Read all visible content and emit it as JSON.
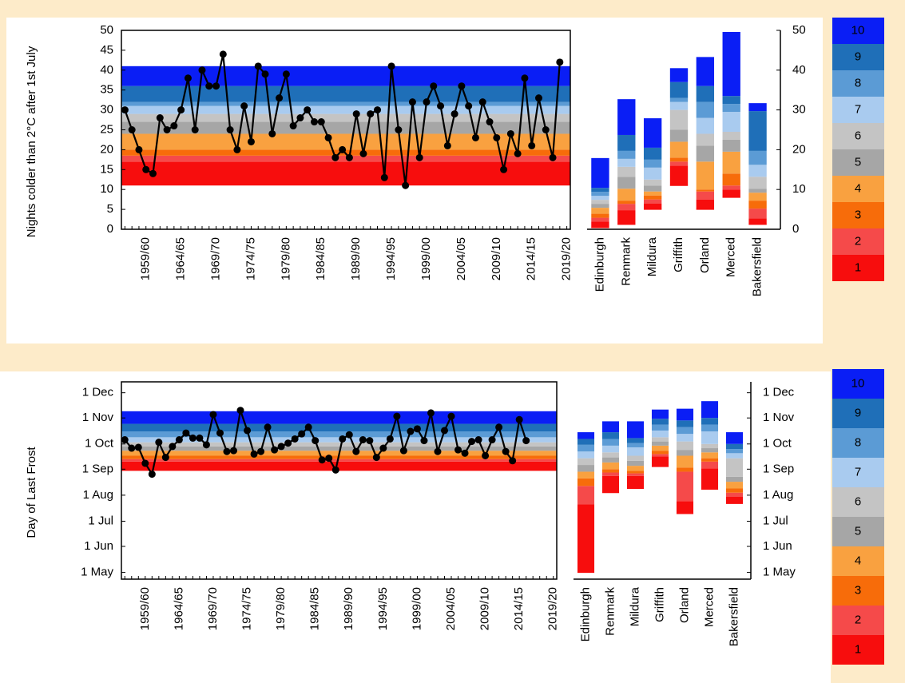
{
  "legend": {
    "items": [
      {
        "label": "1",
        "color": "#f70d0d"
      },
      {
        "label": "2",
        "color": "#f54a4a"
      },
      {
        "label": "3",
        "color": "#f76c0a"
      },
      {
        "label": "4",
        "color": "#f9a140"
      },
      {
        "label": "5",
        "color": "#a6a6a6"
      },
      {
        "label": "6",
        "color": "#c4c4c4"
      },
      {
        "label": "7",
        "color": "#a9cbef"
      },
      {
        "label": "8",
        "color": "#5b9bd5"
      },
      {
        "label": "9",
        "color": "#1f6fb8"
      },
      {
        "label": "10",
        "color": "#0a1ef5"
      }
    ]
  },
  "chart_data": [
    {
      "type": "line",
      "ylabel": "Nights colder than 2°C after 1st July",
      "color": "#000000",
      "categories": [
        null,
        null,
        null,
        "1959/60",
        null,
        null,
        null,
        null,
        "1964/65",
        null,
        null,
        null,
        null,
        "1969/70",
        null,
        null,
        null,
        null,
        "1974/75",
        null,
        null,
        null,
        null,
        "1979/80",
        null,
        null,
        null,
        null,
        "1984/85",
        null,
        null,
        null,
        null,
        "1989/90",
        null,
        null,
        null,
        null,
        "1994/95",
        null,
        null,
        null,
        null,
        "1999/00",
        null,
        null,
        null,
        null,
        "2004/05",
        null,
        null,
        null,
        null,
        "2009/10",
        null,
        null,
        null,
        null,
        "2014/15",
        null,
        null,
        null,
        null,
        "2019/20"
      ],
      "values": [
        30,
        25,
        20,
        15,
        14,
        28,
        25,
        26,
        30,
        38,
        25,
        40,
        36,
        36,
        44,
        25,
        20,
        31,
        22,
        41,
        39,
        24,
        33,
        39,
        26,
        28,
        30,
        27,
        27,
        23,
        18,
        20,
        18,
        29,
        19,
        29,
        30,
        13,
        41,
        25,
        11,
        32,
        18,
        32,
        36,
        31,
        21,
        29,
        36,
        31,
        23,
        32,
        27,
        23,
        15,
        24,
        19,
        38,
        21,
        33,
        25,
        18,
        42,
        null
      ],
      "band_edges": [
        11,
        17,
        18.5,
        20,
        24,
        27,
        29,
        31,
        32,
        36,
        41
      ],
      "ylim": [
        0,
        50
      ],
      "yticks": [
        0,
        5,
        10,
        15,
        20,
        25,
        30,
        35,
        40,
        45,
        50
      ]
    },
    {
      "type": "bar",
      "stacked": true,
      "categories": [
        "Edinburgh",
        "Renmark",
        "Mildura",
        "Griffith",
        "Orland",
        "Merced",
        "Bakersfield"
      ],
      "bottoms": [
        0.4,
        1.2,
        5,
        11,
        5,
        8,
        1.2
      ],
      "segments": [
        [
          1.5,
          3.6,
          1.5,
          5,
          2.5,
          2,
          1.5
        ],
        [
          1,
          1.6,
          1,
          1,
          2,
          1,
          2.5
        ],
        [
          1,
          0.8,
          1,
          1,
          0.5,
          3,
          2
        ],
        [
          1.5,
          3,
          1,
          4,
          7,
          5.5,
          2
        ],
        [
          1,
          3,
          1.5,
          3,
          4,
          3,
          1
        ],
        [
          1,
          2.5,
          1.5,
          5,
          3,
          2,
          3
        ],
        [
          1,
          2,
          3,
          2,
          4,
          5,
          3
        ],
        [
          1,
          2,
          2,
          1,
          4,
          2,
          3.5
        ],
        [
          1,
          4,
          3,
          4,
          4,
          2,
          10
        ],
        [
          7.5,
          9,
          7.4,
          3.5,
          7.3,
          16.1,
          2
        ]
      ],
      "ylim": [
        0,
        50
      ],
      "yticks": [
        0,
        10,
        20,
        30,
        40,
        50
      ]
    },
    {
      "type": "line",
      "ylabel": "Day of Last Frost",
      "color": "#000000",
      "categories": [
        null,
        null,
        null,
        "1959/60",
        null,
        null,
        null,
        null,
        "1964/65",
        null,
        null,
        null,
        null,
        "1969/70",
        null,
        null,
        null,
        null,
        "1974/75",
        null,
        null,
        null,
        null,
        "1979/80",
        null,
        null,
        null,
        null,
        "1984/85",
        null,
        null,
        null,
        null,
        "1989/90",
        null,
        null,
        null,
        null,
        "1994/95",
        null,
        null,
        null,
        null,
        "1999/00",
        null,
        null,
        null,
        null,
        "2004/05",
        null,
        null,
        null,
        null,
        "2009/10",
        null,
        null,
        null,
        null,
        "2014/15",
        null,
        null,
        null,
        null,
        "2019/20"
      ],
      "values": [
        158,
        148,
        149,
        130,
        117,
        155,
        137,
        150,
        158,
        166,
        160,
        160,
        152,
        188,
        166,
        144,
        145,
        193,
        169,
        141,
        144,
        173,
        146,
        150,
        154,
        159,
        165,
        173,
        157,
        134,
        136,
        122,
        159,
        164,
        144,
        158,
        157,
        137,
        148,
        159,
        186,
        145,
        168,
        171,
        157,
        190,
        144,
        169,
        186,
        146,
        142,
        156,
        158,
        139,
        158,
        173,
        144,
        133,
        182,
        157,
        null,
        null,
        null,
        null
      ],
      "band_edges": [
        121,
        132,
        135,
        139,
        145,
        150,
        155,
        161,
        168,
        177,
        192
      ],
      "ylim": [
        -8,
        227
      ],
      "yticks": [
        {
          "value": 0,
          "label": "1 May"
        },
        {
          "value": 31,
          "label": "1 Jun"
        },
        {
          "value": 61,
          "label": "1 Jul"
        },
        {
          "value": 92,
          "label": "1 Aug"
        },
        {
          "value": 123,
          "label": "1 Sep"
        },
        {
          "value": 153,
          "label": "1 Oct"
        },
        {
          "value": 184,
          "label": "1 Nov"
        },
        {
          "value": 214,
          "label": "1 Dec"
        }
      ]
    },
    {
      "type": "bar",
      "stacked": true,
      "categories": [
        "Edinburgh",
        "Renmark",
        "Mildura",
        "Griffith",
        "Orland",
        "Merced",
        "Bakersfield"
      ],
      "bottoms": [
        0,
        95,
        100,
        126,
        70,
        99,
        82
      ],
      "segments": [
        [
          81,
          20,
          15,
          12,
          15,
          25,
          8
        ],
        [
          22,
          4,
          3,
          3,
          35,
          8,
          5
        ],
        [
          9,
          4,
          3,
          4,
          5,
          4,
          5
        ],
        [
          8,
          8,
          6,
          6,
          14,
          7,
          8
        ],
        [
          8,
          6,
          6,
          5,
          7,
          5,
          6
        ],
        [
          8,
          6,
          6,
          5,
          10,
          5,
          22
        ],
        [
          8,
          8,
          10,
          8,
          9,
          15,
          6
        ],
        [
          8,
          8,
          5,
          7,
          8,
          8,
          5
        ],
        [
          7,
          8,
          6,
          7,
          8,
          8,
          6
        ],
        [
          8,
          13,
          20,
          11,
          14,
          20,
          14
        ]
      ],
      "ylim": [
        -8,
        227
      ],
      "yticks": [
        {
          "value": 0,
          "label": "1 May"
        },
        {
          "value": 31,
          "label": "1 Jun"
        },
        {
          "value": 61,
          "label": "1 Jul"
        },
        {
          "value": 92,
          "label": "1 Aug"
        },
        {
          "value": 123,
          "label": "1 Sep"
        },
        {
          "value": 153,
          "label": "1 Oct"
        },
        {
          "value": 184,
          "label": "1 Nov"
        },
        {
          "value": 214,
          "label": "1 Dec"
        }
      ]
    }
  ]
}
